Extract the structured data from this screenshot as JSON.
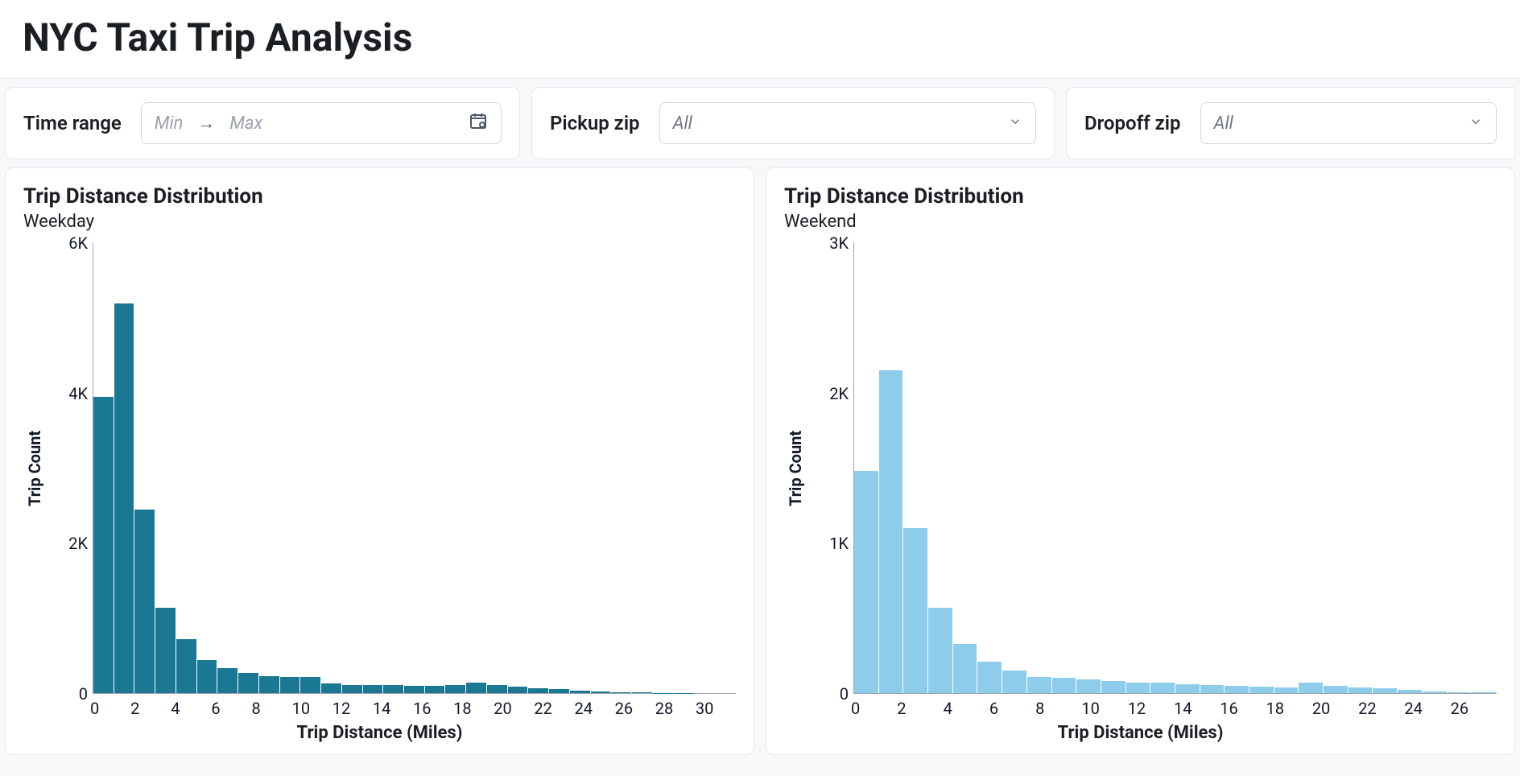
{
  "title": "NYC Taxi Trip Analysis",
  "filters": {
    "time_range": {
      "label": "Time range",
      "min_placeholder": "Min",
      "max_placeholder": "Max"
    },
    "pickup_zip": {
      "label": "Pickup zip",
      "selected": "All"
    },
    "dropoff_zip": {
      "label": "Dropoff zip",
      "selected": "All"
    }
  },
  "chart_weekday": {
    "type": "histogram",
    "title": "Trip Distance Distribution",
    "subtitle": "Weekday",
    "bar_color": "#1a7894",
    "background_color": "#ffffff",
    "axis_color": "#9ca3af",
    "text_color": "#111827",
    "title_fontsize": 26,
    "label_fontsize": 20,
    "x_label": "Trip Distance (Miles)",
    "y_label": "Trip Count",
    "y_max": 6000,
    "y_ticks": [
      0,
      2000,
      4000,
      6000
    ],
    "y_tick_labels": [
      "0",
      "2K",
      "4K",
      "6K"
    ],
    "x_ticks": [
      0,
      2,
      4,
      6,
      8,
      10,
      12,
      14,
      16,
      18,
      20,
      22,
      24,
      26,
      28,
      30
    ],
    "bin_width": 1,
    "bins_start": 0,
    "bins_end": 31,
    "values": [
      3950,
      5200,
      2450,
      1140,
      720,
      440,
      330,
      270,
      230,
      220,
      220,
      130,
      110,
      110,
      110,
      100,
      100,
      110,
      140,
      110,
      90,
      60,
      50,
      30,
      20,
      15,
      10,
      5,
      5,
      0,
      0
    ]
  },
  "chart_weekend": {
    "type": "histogram",
    "title": "Trip Distance Distribution",
    "subtitle": "Weekend",
    "bar_color": "#8dcdeb",
    "background_color": "#ffffff",
    "axis_color": "#9ca3af",
    "text_color": "#111827",
    "title_fontsize": 26,
    "label_fontsize": 20,
    "x_label": "Trip Distance (Miles)",
    "y_label": "Trip Count",
    "y_max": 3000,
    "y_ticks": [
      0,
      1000,
      2000,
      3000
    ],
    "y_tick_labels": [
      "0",
      "1K",
      "2K",
      "3K"
    ],
    "x_ticks": [
      0,
      2,
      4,
      6,
      8,
      10,
      12,
      14,
      16,
      18,
      20,
      22,
      24,
      26
    ],
    "bin_width": 1,
    "bins_start": 0,
    "bins_end": 26,
    "values": [
      1480,
      2150,
      1100,
      570,
      330,
      210,
      150,
      110,
      100,
      90,
      80,
      70,
      70,
      60,
      55,
      50,
      45,
      40,
      70,
      50,
      40,
      30,
      20,
      10,
      5,
      5
    ]
  }
}
